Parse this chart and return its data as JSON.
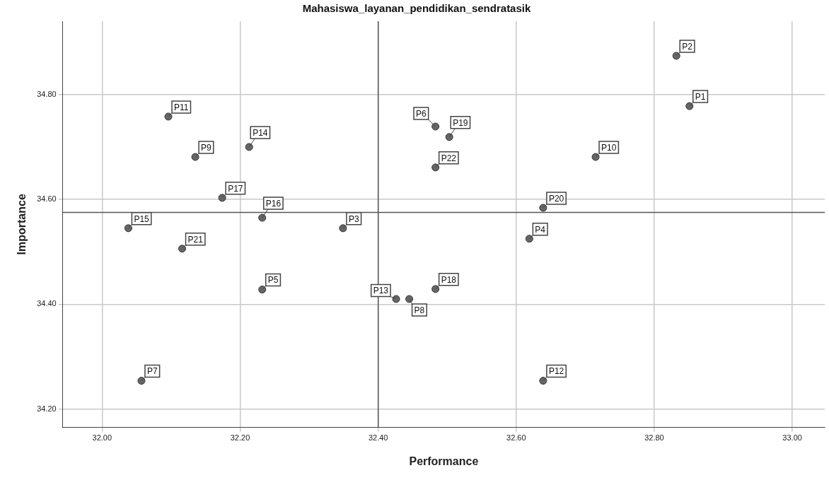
{
  "chart_data": {
    "type": "scatter",
    "title": "Mahasiswa_layanan_pendidikan_sendratasik",
    "xlabel": "Performance",
    "ylabel": "Importance",
    "x": [
      32.851,
      32.832,
      32.349,
      32.619,
      32.232,
      32.483,
      32.057,
      32.445,
      32.135,
      32.715,
      32.096,
      32.639,
      32.426,
      32.213,
      32.038,
      32.232,
      32.174,
      32.483,
      32.503,
      32.639,
      32.116,
      32.483
    ],
    "series": [
      {
        "color": "#666666",
        "values": [
          34.778,
          34.874,
          34.545,
          34.525,
          34.428,
          34.739,
          34.254,
          34.41,
          34.681,
          34.681,
          34.758,
          34.254,
          34.41,
          34.7,
          34.545,
          34.565,
          34.603,
          34.429,
          34.719,
          34.584,
          34.506,
          34.661
        ]
      }
    ],
    "xlim": [
      31.943,
      33.047
    ],
    "ylim": [
      34.165,
      34.94
    ],
    "xticks": [
      {
        "value": 32,
        "label": "32.00"
      },
      {
        "value": 32.2,
        "label": "32.20"
      },
      {
        "value": 32.4,
        "label": "32.40"
      },
      {
        "value": 32.6,
        "label": "32.60"
      },
      {
        "value": 32.8,
        "label": "32.80"
      },
      {
        "value": 33,
        "label": "33.00"
      }
    ],
    "yticks": [
      {
        "value": 34.2,
        "label": "34.20"
      },
      {
        "value": 34.4,
        "label": "34.40"
      },
      {
        "value": 34.6,
        "label": "34.60"
      },
      {
        "value": 34.8,
        "label": "34.80"
      }
    ],
    "grid": true,
    "legend": false,
    "marker": "circle",
    "ref_lines": [
      {
        "axis": "x",
        "value": 32.4,
        "color": "#555555"
      },
      {
        "axis": "y",
        "value": 34.575,
        "color": "#555555"
      }
    ],
    "annotations": [
      {
        "text": "P1",
        "x": 32.851,
        "y": 34.778
      },
      {
        "text": "P2",
        "x": 32.832,
        "y": 34.874
      },
      {
        "text": "P3",
        "x": 32.349,
        "y": 34.545
      },
      {
        "text": "P4",
        "x": 32.619,
        "y": 34.525
      },
      {
        "text": "P5",
        "x": 32.232,
        "y": 34.428
      },
      {
        "text": "P6",
        "x": 32.483,
        "y": 34.739
      },
      {
        "text": "P7",
        "x": 32.057,
        "y": 34.254
      },
      {
        "text": "P8",
        "x": 32.445,
        "y": 34.41
      },
      {
        "text": "P9",
        "x": 32.135,
        "y": 34.681
      },
      {
        "text": "P10",
        "x": 32.715,
        "y": 34.681
      },
      {
        "text": "P11",
        "x": 32.096,
        "y": 34.758
      },
      {
        "text": "P12",
        "x": 32.639,
        "y": 34.254
      },
      {
        "text": "P13",
        "x": 32.426,
        "y": 34.41
      },
      {
        "text": "P14",
        "x": 32.213,
        "y": 34.7
      },
      {
        "text": "P15",
        "x": 32.038,
        "y": 34.545
      },
      {
        "text": "P16",
        "x": 32.232,
        "y": 34.565
      },
      {
        "text": "P17",
        "x": 32.174,
        "y": 34.603
      },
      {
        "text": "P18",
        "x": 32.483,
        "y": 34.429
      },
      {
        "text": "P19",
        "x": 32.503,
        "y": 34.719
      },
      {
        "text": "P20",
        "x": 32.639,
        "y": 34.584
      },
      {
        "text": "P21",
        "x": 32.116,
        "y": 34.506
      },
      {
        "text": "P22",
        "x": 32.483,
        "y": 34.661
      }
    ]
  }
}
